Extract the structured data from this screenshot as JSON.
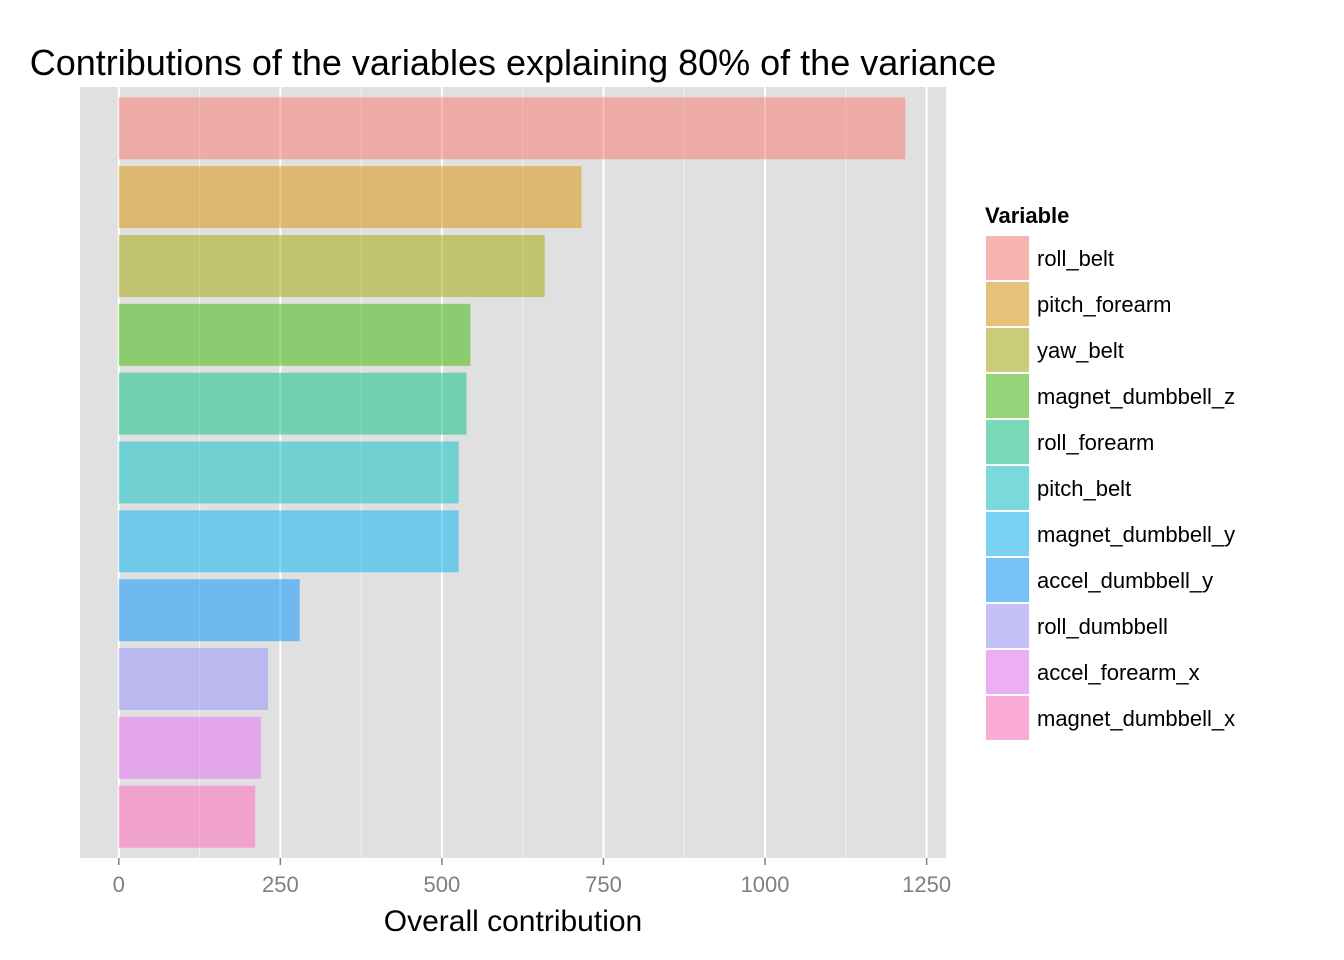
{
  "chart_data": {
    "type": "bar",
    "orientation": "horizontal",
    "title": "Contributions of the variables explaining 80% of the variance",
    "xlabel": "Overall contribution",
    "ylabel": "",
    "xlim": [
      -60,
      1280
    ],
    "xticks": [
      0,
      250,
      500,
      750,
      1000,
      1250
    ],
    "xtick_labels": [
      "0",
      "250",
      "500",
      "750",
      "1000",
      "1250"
    ],
    "grid": true,
    "legend": {
      "title": "Variable",
      "position": "right"
    },
    "categories": [
      "roll_belt",
      "pitch_forearm",
      "yaw_belt",
      "magnet_dumbbell_z",
      "roll_forearm",
      "pitch_belt",
      "magnet_dumbbell_y",
      "accel_dumbbell_y",
      "roll_dumbbell",
      "accel_forearm_x",
      "magnet_dumbbell_x"
    ],
    "values": [
      1217,
      716,
      659,
      544,
      538,
      526,
      526,
      280,
      231,
      220,
      211
    ],
    "colors": [
      "#F8766D",
      "#D89000",
      "#A3A500",
      "#39B600",
      "#00BF7D",
      "#00BFC4",
      "#00B0F6",
      "#0092FF",
      "#9590FF",
      "#E76BF3",
      "#FF62BC"
    ]
  }
}
